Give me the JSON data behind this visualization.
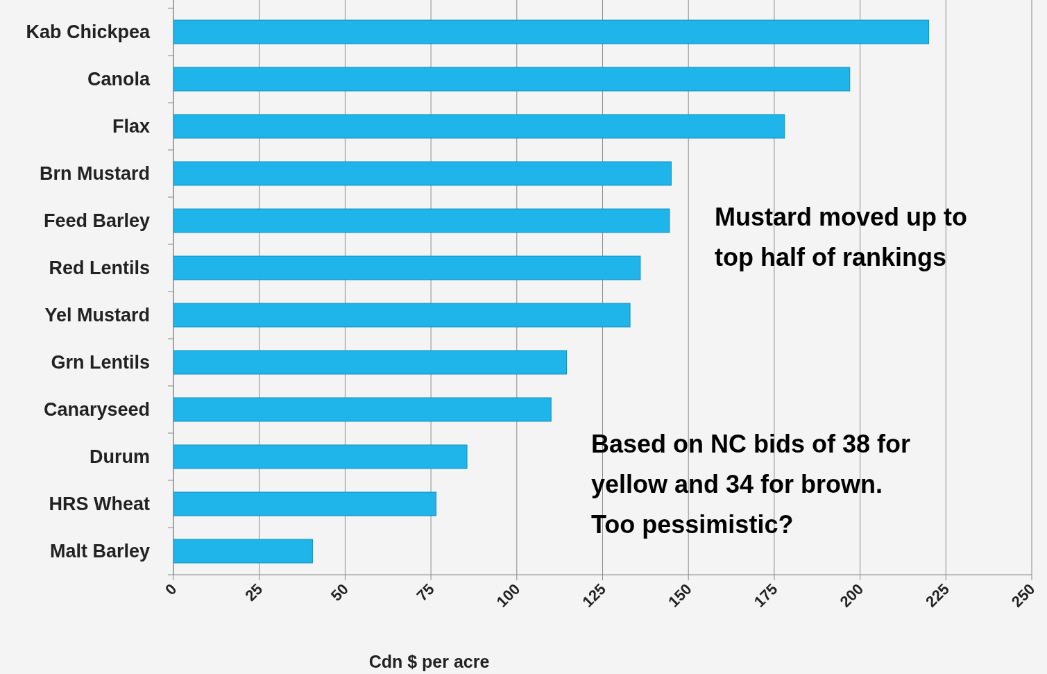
{
  "chart_data": {
    "type": "bar",
    "orientation": "horizontal",
    "xlabel": "Cdn $ per acre",
    "categories": [
      "Kab Chickpea",
      "Canola",
      "Flax",
      "Brn Mustard",
      "Feed Barley",
      "Red Lentils",
      "Yel Mustard",
      "Grn Lentils",
      "Canaryseed",
      "Durum",
      "HRS Wheat",
      "Malt Barley"
    ],
    "values": [
      220,
      197,
      178,
      145,
      144.5,
      136,
      133,
      114.5,
      110,
      85.5,
      76.5,
      40.5
    ],
    "color": "#1fb4ea",
    "xlim": [
      0,
      250
    ],
    "xticks": [
      0,
      25,
      50,
      75,
      100,
      125,
      150,
      175,
      200,
      225,
      250
    ],
    "grid": "x",
    "annotations": [
      "Mustard moved up to\ntop half of rankings",
      "Based on NC bids of 38 for\nyellow and 34 for brown.\nToo pessimistic?"
    ]
  }
}
